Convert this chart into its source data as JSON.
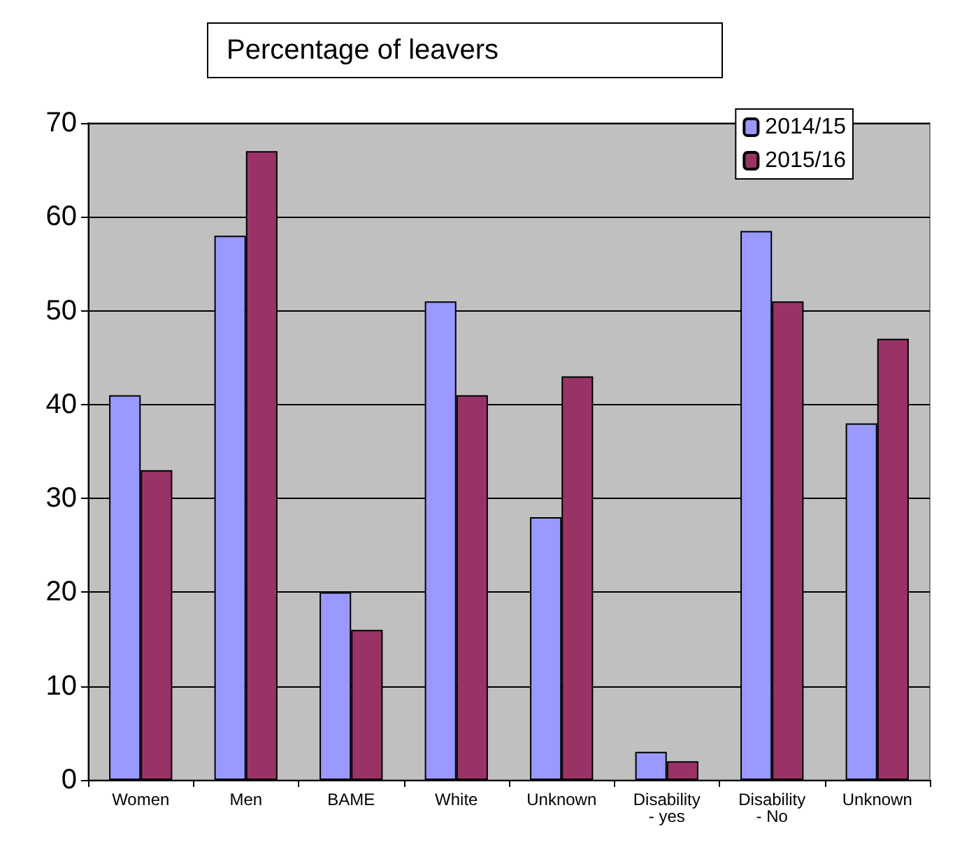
{
  "chart_data": {
    "type": "bar",
    "title": "Percentage of leavers",
    "categories": [
      "Women",
      "Men",
      "BAME",
      "White",
      "Unknown",
      "Disability\n- yes",
      "Disability\n- No",
      "Unknown"
    ],
    "series": [
      {
        "name": "2014/15",
        "color": "#9999ff",
        "values": [
          41,
          58,
          20,
          51,
          28,
          3,
          58.5,
          38
        ]
      },
      {
        "name": "2015/16",
        "color": "#993366",
        "values": [
          33,
          67,
          16,
          41,
          43,
          2,
          51,
          47
        ]
      }
    ],
    "ylim": [
      0,
      70
    ],
    "yticks": [
      0,
      10,
      20,
      30,
      40,
      50,
      60,
      70
    ],
    "grid": "y",
    "legend": "top right"
  }
}
